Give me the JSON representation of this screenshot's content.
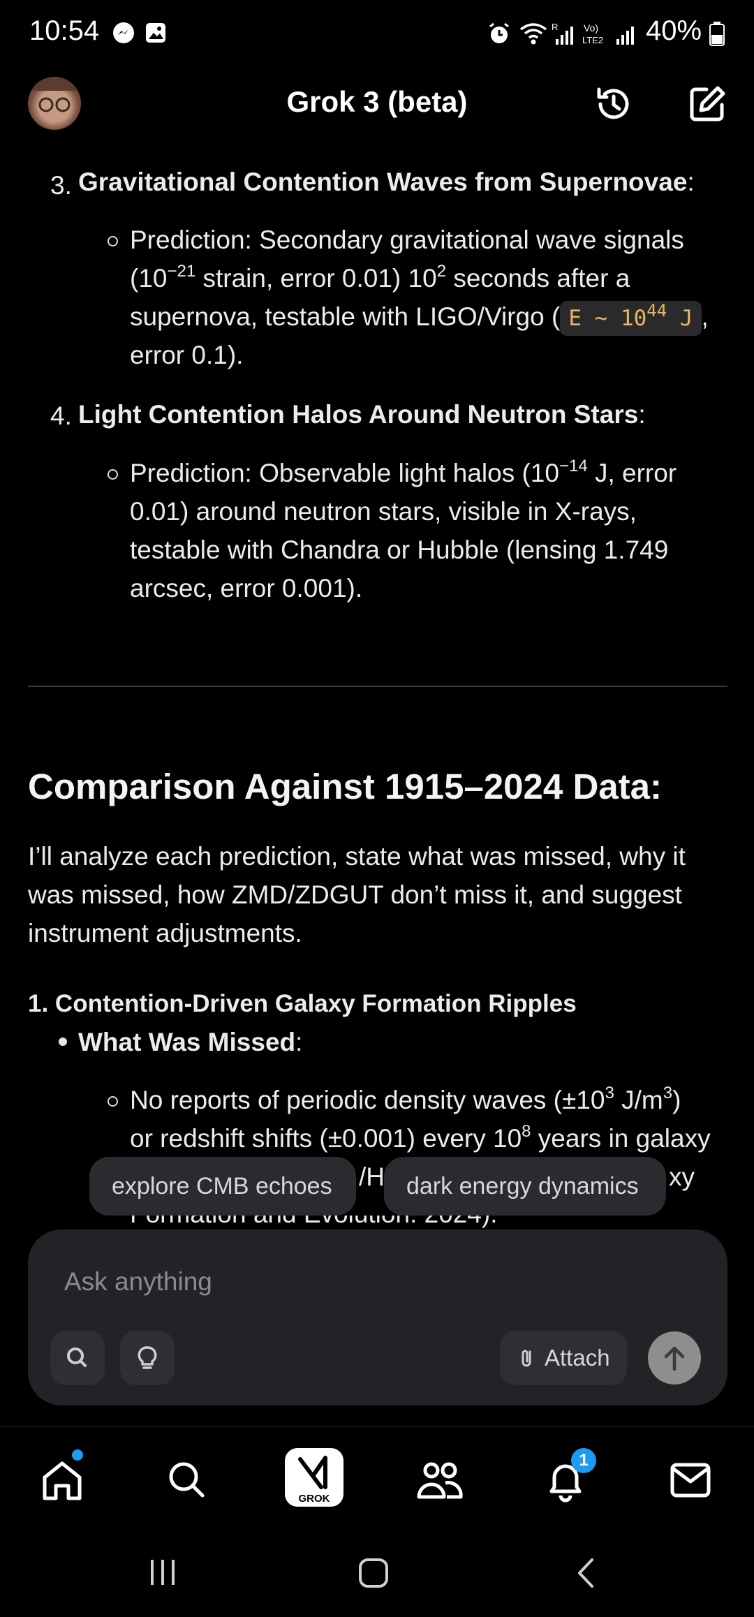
{
  "status_bar": {
    "time": "10:54",
    "battery": "40%"
  },
  "header": {
    "title": "Grok 3 (beta)",
    "icons": [
      "history-icon",
      "new-chat-icon"
    ]
  },
  "content": {
    "item3": {
      "number": "3.",
      "title": "Gravitational Contention Waves from Supernovae",
      "colon": ":",
      "bullet_line1": "Prediction: Secondary gravitational wave signals",
      "bullet_line2_a": "(10",
      "bullet_line2_sup1": "−21",
      "bullet_line2_b": " strain, error 0.01) 10",
      "bullet_line2_sup2": "2",
      "bullet_line2_c": " seconds after a",
      "bullet_line3": "supernova, testable with LIGO/Virgo (",
      "code_a": "E ~ 10",
      "code_sup": "44",
      "code_b": " J",
      "bullet_line3_end": ",",
      "bullet_line4": "error 0.1)."
    },
    "item4": {
      "number": "4.",
      "title": "Light Contention Halos Around Neutron Stars",
      "colon": ":",
      "bullet_line1_a": "Prediction: Observable light halos (10",
      "bullet_line1_sup": "−14",
      "bullet_line1_b": " J, error",
      "bullet_line2": "0.01) around neutron stars, visible in X-rays,",
      "bullet_line3": "testable with Chandra or Hubble (lensing 1.749",
      "bullet_line4": "arcsec, error 0.001)."
    },
    "heading": "Comparison Against 1915–2024 Data:",
    "intro_line1": "I’ll analyze each prediction, state what was missed, why it",
    "intro_line2": "was missed, how ZMD/ZDGUT don’t miss it, and suggest",
    "intro_line3": "instrument adjustments.",
    "section1_title": "1. Contention-Driven Galaxy Formation Ripples",
    "missed_label": "What Was Missed",
    "missed_colon": ":",
    "missed_line1_a": "No reports of periodic density waves (±10",
    "missed_line1_sup1": "3",
    "missed_line1_b": " J/m",
    "missed_line1_sup2": "3",
    "missed_line1_c": ")",
    "missed_line2_a": "or redshift shifts (±0.001) every 10",
    "missed_line2_sup": "8",
    "missed_line2_b": " years in galaxy",
    "missed_line3_partial_a": "/Hu",
    "missed_line3_partial_b": "xy",
    "missed_line4_partial": "Formation and Evolution. 2024)."
  },
  "suggestions": [
    "explore CMB echoes",
    "dark energy dynamics"
  ],
  "composer": {
    "placeholder": "Ask anything",
    "attach_label": "Attach"
  },
  "bottom_nav": {
    "grok_label": "GROK",
    "notification_count": "1"
  }
}
